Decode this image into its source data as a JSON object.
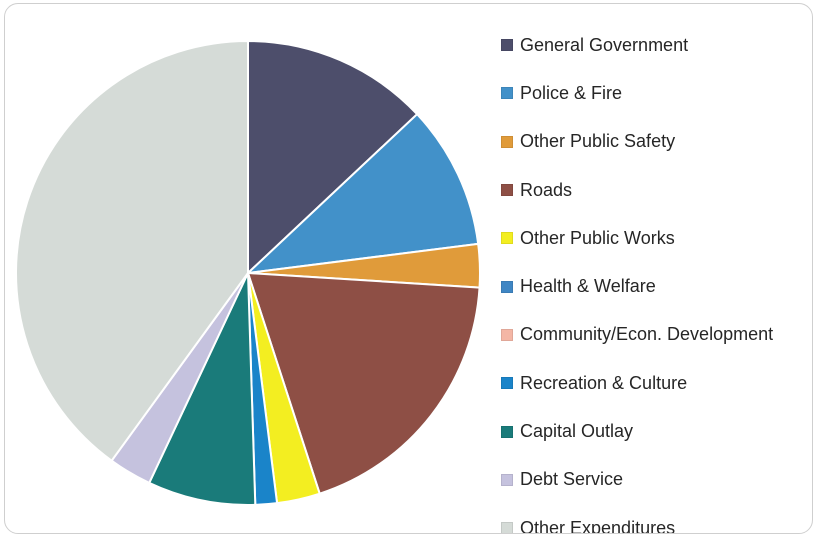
{
  "chart_data": {
    "type": "pie",
    "title": "",
    "legend_position": "right",
    "start_angle_deg": 0,
    "direction": "clockwise",
    "slices": [
      {
        "label": "General Government",
        "value": 13.0,
        "color": "#4d4e6b"
      },
      {
        "label": "Police & Fire",
        "value": 10.0,
        "color": "#4291c9"
      },
      {
        "label": "Other Public Safety",
        "value": 3.0,
        "color": "#e09b3a"
      },
      {
        "label": "Roads",
        "value": 19.0,
        "color": "#8e4f45"
      },
      {
        "label": "Other Public Works",
        "value": 3.0,
        "color": "#f3ee21"
      },
      {
        "label": "Health & Welfare",
        "value": 0.0,
        "color": "#3f86c4"
      },
      {
        "label": "Community/Econ. Development",
        "value": 0.0,
        "color": "#f4b6a5"
      },
      {
        "label": "Recreation & Culture",
        "value": 1.5,
        "color": "#1a84c9"
      },
      {
        "label": "Capital Outlay",
        "value": 7.5,
        "color": "#1a7b7a"
      },
      {
        "label": "Debt Service",
        "value": 3.0,
        "color": "#c5c2de"
      },
      {
        "label": "Other Expenditures",
        "value": 40.0,
        "color": "#d5dbd7"
      }
    ]
  }
}
